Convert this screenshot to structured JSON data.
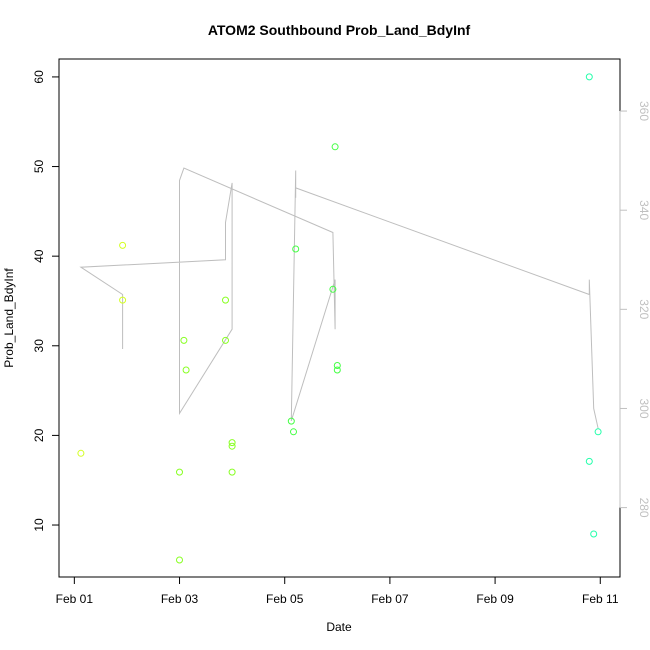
{
  "chart_data": {
    "type": "scatter",
    "title": "ATOM2 Southbound Prob_Land_BdyInf",
    "xlabel": "Date",
    "ylabel": "Prob_Land_BdyInf",
    "x_ticks": [
      "Feb 01",
      "Feb 03",
      "Feb 05",
      "Feb 07",
      "Feb 09",
      "Feb 11"
    ],
    "y_ticks": [
      "10",
      "20",
      "30",
      "40",
      "50",
      "60"
    ],
    "y2_ticks": [
      "280",
      "300",
      "320",
      "340",
      "360"
    ],
    "xlim": [
      "2024-01-31T17:00",
      "2024-02-11T09:00"
    ],
    "ylim": [
      4.2,
      62
    ],
    "y2lim": [
      266,
      370.5
    ],
    "grid": false,
    "points": [
      {
        "x": "2024-02-01T03:00",
        "y": 18.0,
        "color": "#d4ff22"
      },
      {
        "x": "2024-02-01T22:00",
        "y": 41.2,
        "color": "#d4ff22"
      },
      {
        "x": "2024-02-01T22:00",
        "y": 35.1,
        "color": "#d4ff22"
      },
      {
        "x": "2024-02-03T00:00",
        "y": 6.1,
        "color": "#88ff22"
      },
      {
        "x": "2024-02-03T00:00",
        "y": 15.9,
        "color": "#88ff22"
      },
      {
        "x": "2024-02-03T02:00",
        "y": 30.6,
        "color": "#88ff22"
      },
      {
        "x": "2024-02-03T03:00",
        "y": 27.3,
        "color": "#88ff22"
      },
      {
        "x": "2024-02-03T21:00",
        "y": 35.1,
        "color": "#88ff22"
      },
      {
        "x": "2024-02-03T21:00",
        "y": 30.6,
        "color": "#88ff22"
      },
      {
        "x": "2024-02-04T00:00",
        "y": 19.2,
        "color": "#88ff22"
      },
      {
        "x": "2024-02-04T00:00",
        "y": 18.8,
        "color": "#88ff22"
      },
      {
        "x": "2024-02-04T00:00",
        "y": 15.9,
        "color": "#88ff22"
      },
      {
        "x": "2024-02-05T03:00",
        "y": 21.6,
        "color": "#44ff44"
      },
      {
        "x": "2024-02-05T04:00",
        "y": 20.4,
        "color": "#44ff44"
      },
      {
        "x": "2024-02-05T05:00",
        "y": 40.8,
        "color": "#44ff44"
      },
      {
        "x": "2024-02-05T22:00",
        "y": 36.3,
        "color": "#44ff44"
      },
      {
        "x": "2024-02-05T23:00",
        "y": 52.2,
        "color": "#44ff44"
      },
      {
        "x": "2024-02-06T00:00",
        "y": 27.8,
        "color": "#44ff44"
      },
      {
        "x": "2024-02-06T00:00",
        "y": 27.3,
        "color": "#44ff44"
      },
      {
        "x": "2024-02-10T19:00",
        "y": 60.0,
        "color": "#22ffaa"
      },
      {
        "x": "2024-02-10T19:00",
        "y": 17.1,
        "color": "#22ffaa"
      },
      {
        "x": "2024-02-10T21:00",
        "y": 9.0,
        "color": "#22ffaa"
      },
      {
        "x": "2024-02-10T23:00",
        "y": 20.4,
        "color": "#22ffaa"
      }
    ],
    "line_series": {
      "color": "#bebebe",
      "points": [
        {
          "x": "2024-02-01T03:00",
          "y2": 328.5
        },
        {
          "x": "2024-02-01T22:00",
          "y2": 323.0
        },
        {
          "x": "2024-02-01T22:00",
          "y2": 312.0
        },
        {
          "x": "2024-02-01T22:00",
          "y2": 323.0
        },
        {
          "x": "2024-02-01T03:00",
          "y2": 328.5
        },
        {
          "x": "2024-02-03T21:00",
          "y2": 330.0
        },
        {
          "x": "2024-02-03T21:00",
          "y2": 337.5
        },
        {
          "x": "2024-02-04T00:00",
          "y2": 345.5
        },
        {
          "x": "2024-02-04T00:00",
          "y2": 316.0
        },
        {
          "x": "2024-02-03T00:00",
          "y2": 299.0
        },
        {
          "x": "2024-02-03T00:00",
          "y2": 346.0
        },
        {
          "x": "2024-02-03T02:00",
          "y2": 348.5
        },
        {
          "x": "2024-02-05T22:00",
          "y2": 335.5
        },
        {
          "x": "2024-02-05T23:00",
          "y2": 316.0
        },
        {
          "x": "2024-02-05T23:00",
          "y2": 326.0
        },
        {
          "x": "2024-02-05T03:00",
          "y2": 297.5
        },
        {
          "x": "2024-02-05T05:00",
          "y2": 348.0
        },
        {
          "x": "2024-02-05T05:00",
          "y2": 342.5
        },
        {
          "x": "2024-02-05T05:00",
          "y2": 344.5
        },
        {
          "x": "2024-02-10T19:00",
          "y2": 323.0
        },
        {
          "x": "2024-02-10T19:00",
          "y2": 326.0
        },
        {
          "x": "2024-02-10T21:00",
          "y2": 300.0
        },
        {
          "x": "2024-02-10T23:00",
          "y2": 296.0
        }
      ]
    }
  }
}
